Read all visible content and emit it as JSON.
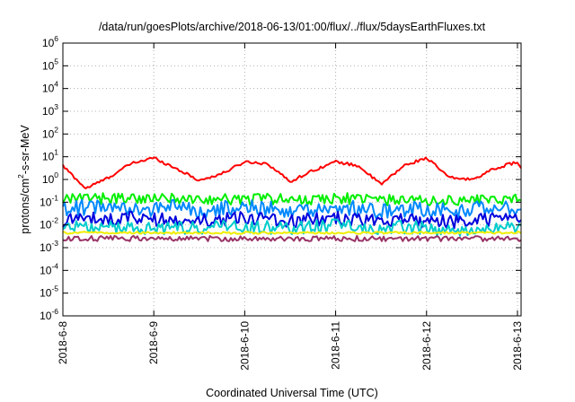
{
  "chart_data": {
    "type": "line",
    "title": "/data/run/goesPlots/archive/2018-06-13/01:00/flux/../flux/5daysEarthFluxes.txt",
    "xlabel": "Coordinated Universal Time (UTC)",
    "ylabel": {
      "base": "protons/cm",
      "sup": "2",
      "rest": "-s-sr-MeV"
    },
    "y_scale": "log",
    "ylim": [
      1e-06,
      1000000.0
    ],
    "xlim": [
      "2018-06-08T00:00",
      "2018-06-13T01:00"
    ],
    "grid": true,
    "legend": "none",
    "x_ticks": [
      "2018-6-8",
      "2018-6-9",
      "2018-6-10",
      "2018-6-11",
      "2018-6-12",
      "2018-6-13"
    ],
    "y_ticks": [
      {
        "exp": "-6"
      },
      {
        "exp": "-5"
      },
      {
        "exp": "-4"
      },
      {
        "exp": "-3"
      },
      {
        "exp": "-2"
      },
      {
        "exp": "-1"
      },
      {
        "exp": "0"
      },
      {
        "exp": "1"
      },
      {
        "exp": "2"
      },
      {
        "exp": "3"
      },
      {
        "exp": "4"
      },
      {
        "exp": "5"
      },
      {
        "exp": "6"
      }
    ],
    "x_days": [
      0,
      0.25,
      0.5,
      0.75,
      1,
      1.25,
      1.5,
      1.75,
      2,
      2.25,
      2.5,
      2.75,
      3,
      3.25,
      3.5,
      3.75,
      4,
      4.25,
      4.5,
      4.75,
      5,
      5.04
    ],
    "series": [
      {
        "color": "#ff0000",
        "noise": 0.06,
        "values": [
          4,
          0.4,
          1.2,
          5,
          9,
          3,
          0.9,
          1.8,
          6,
          5,
          0.8,
          2.5,
          6,
          4,
          0.6,
          4,
          9,
          1.2,
          1.0,
          3,
          6,
          3
        ]
      },
      {
        "color": "#00ee00",
        "noise": 0.25,
        "values": [
          0.12,
          0.15,
          0.14,
          0.16,
          0.13,
          0.15,
          0.12,
          0.14,
          0.13,
          0.15,
          0.12,
          0.13,
          0.15,
          0.14,
          0.12,
          0.13,
          0.11,
          0.12,
          0.13,
          0.14,
          0.13,
          0.12
        ]
      },
      {
        "color": "#0088ff",
        "noise": 0.35,
        "values": [
          0.05,
          0.06,
          0.05,
          0.07,
          0.05,
          0.06,
          0.04,
          0.05,
          0.06,
          0.05,
          0.04,
          0.05,
          0.06,
          0.05,
          0.04,
          0.05,
          0.05,
          0.04,
          0.05,
          0.06,
          0.05,
          0.05
        ]
      },
      {
        "color": "#0000dd",
        "noise": 0.3,
        "values": [
          0.015,
          0.02,
          0.018,
          0.022,
          0.017,
          0.02,
          0.015,
          0.018,
          0.02,
          0.017,
          0.015,
          0.017,
          0.02,
          0.018,
          0.014,
          0.016,
          0.015,
          0.014,
          0.015,
          0.017,
          0.016,
          0.015
        ]
      },
      {
        "color": "#00cccc",
        "noise": 0.3,
        "values": [
          0.007,
          0.009,
          0.008,
          0.009,
          0.007,
          0.008,
          0.007,
          0.008,
          0.009,
          0.008,
          0.007,
          0.008,
          0.009,
          0.008,
          0.007,
          0.008,
          0.007,
          0.006,
          0.007,
          0.008,
          0.007,
          0.007
        ]
      },
      {
        "color": "#eeee00",
        "noise": 0.05,
        "values": [
          0.0045,
          0.0045,
          0.0045,
          0.0045,
          0.0045,
          0.0045,
          0.0045,
          0.0045,
          0.0045,
          0.0045,
          0.0045,
          0.0045,
          0.0045,
          0.0045,
          0.0045,
          0.0045,
          0.0045,
          0.0045,
          0.0045,
          0.0045,
          0.0045,
          0.0045
        ]
      },
      {
        "color": "#993366",
        "noise": 0.12,
        "values": [
          0.0025,
          0.0025,
          0.0025,
          0.0025,
          0.0025,
          0.0025,
          0.0025,
          0.0025,
          0.0025,
          0.0025,
          0.0025,
          0.0025,
          0.0025,
          0.0025,
          0.0025,
          0.0025,
          0.0025,
          0.0025,
          0.0025,
          0.0025,
          0.0025,
          0.0025
        ]
      }
    ]
  }
}
